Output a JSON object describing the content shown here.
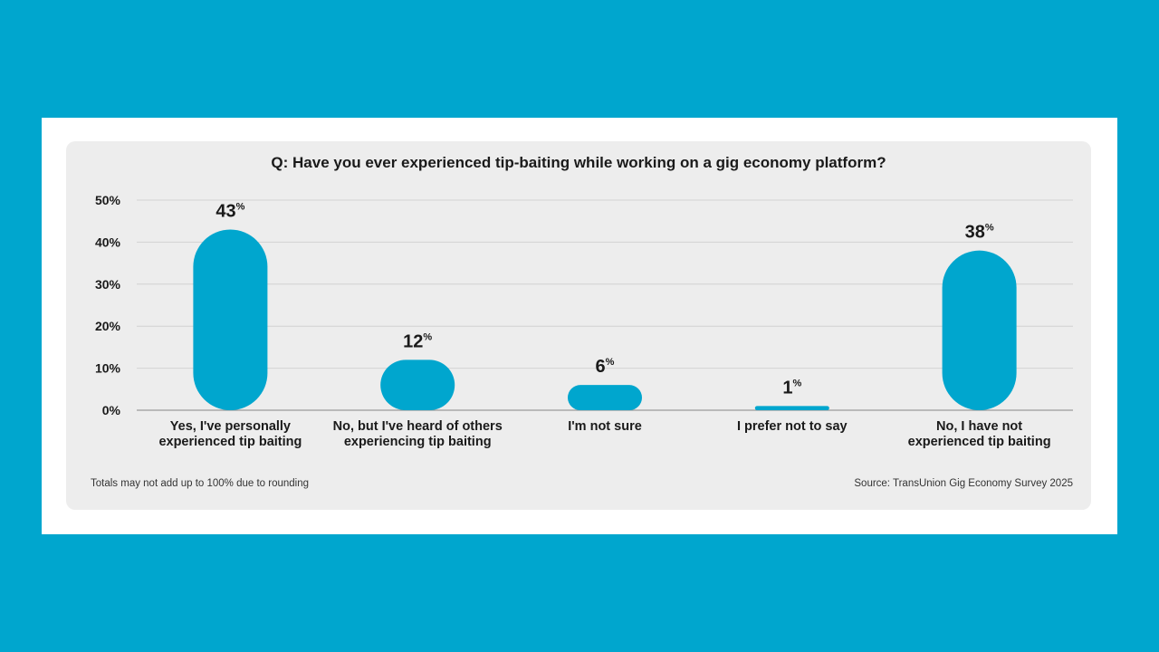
{
  "colors": {
    "background": "#00A6CE",
    "bar": "#00A6CE",
    "card": "#EDEDED",
    "grid": "#D2D2D2"
  },
  "chart_data": {
    "type": "bar",
    "title": "Q: Have you ever experienced tip-baiting while working on a gig economy platform?",
    "categories": [
      [
        "Yes, I've personally",
        "experienced tip baiting"
      ],
      [
        "No, but I've heard of others",
        "experiencing tip baiting"
      ],
      [
        "I'm not sure"
      ],
      [
        "I prefer not to say"
      ],
      [
        "No, I have not",
        "experienced tip baiting"
      ]
    ],
    "values": [
      43,
      12,
      6,
      1,
      38
    ],
    "value_suffix": "%",
    "y_ticks": [
      "0%",
      "10%",
      "20%",
      "30%",
      "40%",
      "50%"
    ],
    "ylim": [
      0,
      50
    ],
    "xlabel": "",
    "ylabel": "",
    "grid": true
  },
  "footer": {
    "note": "Totals may not add up to 100% due to rounding",
    "source": "Source: TransUnion Gig Economy Survey 2025"
  }
}
